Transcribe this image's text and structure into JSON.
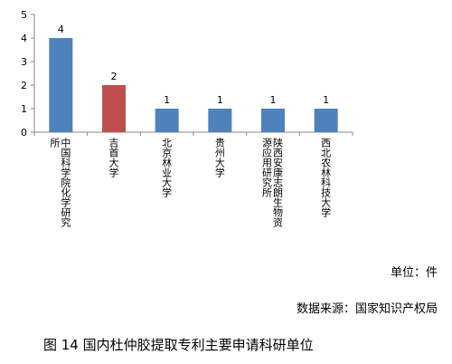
{
  "chart_data": {
    "type": "bar",
    "categories": [
      "中国科学院化学研究所",
      "吉首大学",
      "北京林业大学",
      "贵州大学",
      "陕西安康志朗生物资源应用研究所",
      "西北农林科技大学"
    ],
    "category_lines": [
      [
        "中国科学院化学研究",
        "所"
      ],
      [
        "吉首大学"
      ],
      [
        "北京林业大学"
      ],
      [
        "贵州大学"
      ],
      [
        "陕西安康志朗生物资",
        "源应用研究所"
      ],
      [
        "西北农林科技大学"
      ]
    ],
    "values": [
      4,
      2,
      1,
      1,
      1,
      1
    ],
    "data_labels": [
      "4",
      "2",
      "1",
      "1",
      "1",
      "1"
    ],
    "bar_colors": [
      "#4f81bd",
      "#c0504d",
      "#4f81bd",
      "#4f81bd",
      "#4f81bd",
      "#4f81bd"
    ],
    "ylim": [
      0,
      5
    ],
    "yticks": [
      "0",
      "1",
      "2",
      "3",
      "4",
      "5"
    ],
    "grid": false,
    "legend": "none"
  },
  "unit_text": "单位：件",
  "source_text": "数据来源：国家知识产权局",
  "caption": "图 14  国内杜仲胶提取专利主要申请科研单位"
}
